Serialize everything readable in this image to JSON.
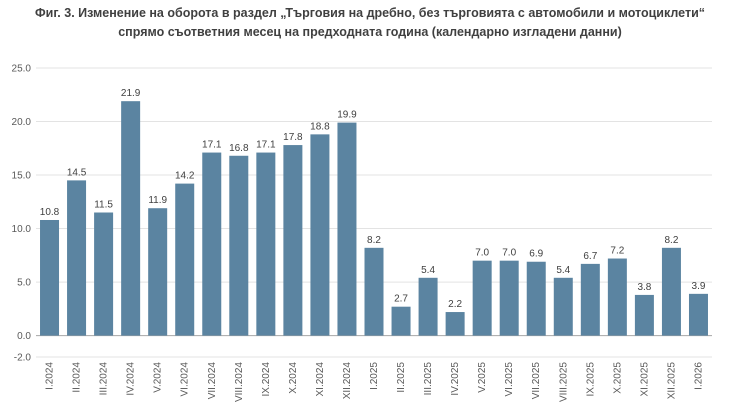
{
  "chart_data": {
    "type": "bar",
    "title_line1": "Фиг. 3. Изменение на оборота в раздел „Търговия на дребно, без търговията с автомобили и мотоциклети“",
    "title_line2": "спрямо съответния месец на предходната година (календарно изгладени данни)",
    "categories": [
      "I.2024",
      "II.2024",
      "III.2024",
      "IV.2024",
      "V.2024",
      "VI.2024",
      "VII.2024",
      "VIII.2024",
      "IX.2024",
      "X.2024",
      "XI.2024",
      "XII.2024",
      "I.2025",
      "II.2025",
      "III.2025",
      "IV.2025",
      "V.2025",
      "VI.2025",
      "VII.2025",
      "VIII.2025",
      "IX.2025",
      "X.2025",
      "XI.2025",
      "XII.2025",
      "I.2026"
    ],
    "values": [
      10.8,
      14.5,
      11.5,
      21.9,
      11.9,
      14.2,
      17.1,
      16.8,
      17.1,
      17.8,
      18.8,
      19.9,
      8.2,
      2.7,
      5.4,
      2.2,
      7.0,
      7.0,
      6.9,
      5.4,
      6.7,
      7.2,
      3.8,
      8.2,
      3.9
    ],
    "value_labels": [
      "10.8",
      "14.5",
      "11.5",
      "21.9",
      "11.9",
      "14.2",
      "17.1",
      "16.8",
      "17.1",
      "17.8",
      "18.8",
      "19.9",
      "8.2",
      "2.7",
      "5.4",
      "2.2",
      "7.0",
      "7.0",
      "6.9",
      "5.4",
      "6.7",
      "7.2",
      "3.8",
      "8.2",
      "3.9"
    ],
    "yticks": [
      -2.0,
      0.0,
      5.0,
      10.0,
      15.0,
      20.0,
      25.0
    ],
    "ytick_labels": [
      "-2.0",
      "0.0",
      "5.0",
      "10.0",
      "15.0",
      "20.0",
      "25.0"
    ],
    "ylim": [
      -2.0,
      25.0
    ],
    "grid": true,
    "colors": {
      "bar": "#5b84a1",
      "grid": "#e3e3e3",
      "axis": "#a6a6a6"
    }
  }
}
